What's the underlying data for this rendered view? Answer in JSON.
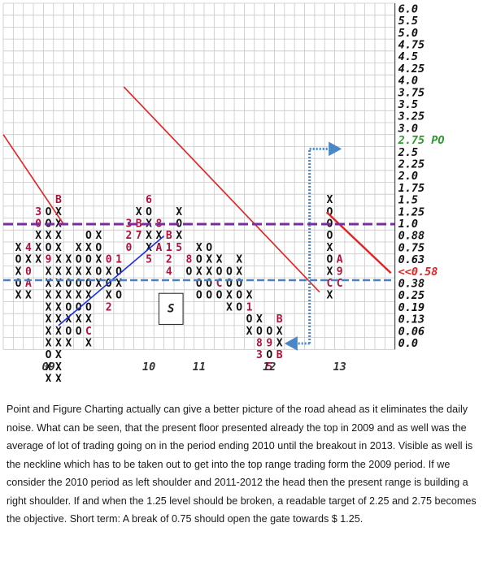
{
  "chart_data": {
    "type": "point-and-figure",
    "price_axis": [
      "6.0",
      "5.5",
      "5.0",
      "4.75",
      "4.5",
      "4.25",
      "4.0",
      "3.75",
      "3.5",
      "3.25",
      "3.0",
      "2.75 PO",
      "2.5",
      "2.25",
      "2.0",
      "1.75",
      "1.5",
      "1.25",
      "1.0",
      "0.88",
      "0.75",
      "0.63",
      "<<0.58",
      "0.38",
      "0.25",
      "0.19",
      "0.13",
      "0.06",
      "0.0"
    ],
    "year_labels": [
      "09",
      "10",
      "11",
      "12",
      "13"
    ],
    "columns": [
      [
        "3",
        "0",
        "X",
        "X",
        "X"
      ],
      [
        "X",
        "O",
        "X",
        "O",
        "X"
      ],
      [
        "4",
        "X",
        "0",
        "A",
        "X"
      ],
      [
        "O",
        "O",
        "X",
        "O",
        "9",
        "X",
        "X",
        "X",
        "X",
        "X",
        "X",
        "X",
        "O",
        "X",
        "X",
        "X"
      ],
      [
        "B",
        "X",
        "X",
        "X",
        "X",
        "X",
        "X",
        "X",
        "X",
        "X",
        "X",
        "X",
        "X",
        "X",
        "X",
        "X"
      ],
      [
        "X",
        "X",
        "O",
        "X",
        "O",
        "X",
        "O",
        "X"
      ],
      [
        "X",
        "O",
        "X",
        "O",
        "X",
        "O",
        "X",
        "O"
      ],
      [
        "O",
        "X",
        "O",
        "X",
        "O",
        "X",
        "O",
        "X",
        "C",
        "X"
      ],
      [
        "X",
        "O",
        "X",
        "O",
        "X"
      ],
      [
        "0",
        "X",
        "O",
        "X",
        "2"
      ],
      [
        "1",
        "O",
        "X",
        "O"
      ],
      [
        "3",
        "2",
        "0"
      ],
      [
        "X",
        "B",
        "7"
      ],
      [
        "6",
        "O",
        "X",
        "X",
        "X",
        "5"
      ],
      [
        "8",
        "X",
        "A"
      ],
      [
        "B",
        "1",
        "2",
        "4"
      ],
      [
        "X",
        "O",
        "X",
        "5"
      ],
      [
        "8",
        "O"
      ],
      [
        "X",
        "O",
        "X",
        "O",
        "O"
      ],
      [
        "O",
        "X",
        "X",
        "O",
        "O"
      ],
      [
        "X",
        "O",
        "C",
        "O"
      ],
      [
        "O",
        "O",
        "X",
        "X"
      ],
      [
        "X",
        "X",
        "O",
        "O",
        "O"
      ],
      [
        "X",
        "1",
        "O",
        "X"
      ],
      [
        "X",
        "O",
        "8",
        "3"
      ],
      [
        "O",
        "9",
        "O",
        "5"
      ],
      [
        "B",
        "X",
        "X",
        "B"
      ],
      [
        "X",
        "O",
        "O",
        "O",
        "X",
        "O",
        "X",
        "C",
        "X"
      ],
      [
        "A",
        "9",
        "C"
      ]
    ],
    "title": "",
    "xlabel": "",
    "ylabel": "",
    "po_label": "2.75 PO",
    "special_label": "<<0.58",
    "annotation_box": "S"
  },
  "caption": "Point and Figure Charting actually can give a better picture of the road ahead as it eliminates the daily noise. What can be seen, that the present floor presented already the top in 2009 and as well was the average of lot of trading going on in the period ending 2010 until the breakout in 2013. Visible as well is the neckline which has to be taken out to get into the top range trading form the 2009 period. If we consider the 2010 period as left shoulder and 2011-2012 the head then the present range is building a right shoulder. If and when the 1.25 level should be broken, a readable target of 2.25 and 2.75 becomes the objective. Short term: A break of 0.75 should open the gate towards $ 1.25.",
  "colors": {
    "x_mark": "#111111",
    "o_mark": "#111111",
    "month": "#b0103a",
    "red_line": "#e62020",
    "blue_line": "#1c2fe0",
    "neckline": "#7b2aa0",
    "floor": "#4a7fbf",
    "po": "#2e9a2e",
    "dotted": "#4a86c8",
    "grid": "#c8c8c8"
  }
}
